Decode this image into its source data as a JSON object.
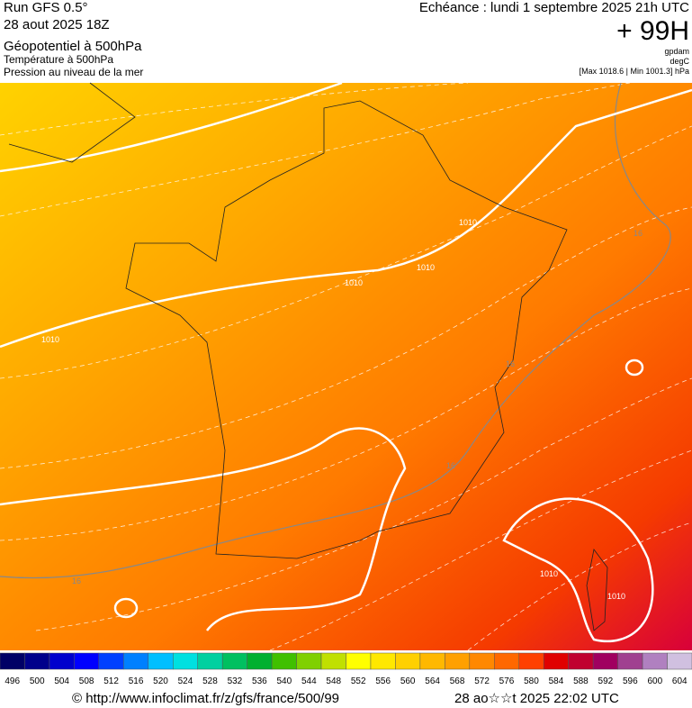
{
  "header": {
    "run": "Run GFS 0.5°",
    "date": "28 aout 2025 18Z",
    "layers": [
      "Géopotentiel à 500hPa",
      "Température à 500hPa",
      "Pression au niveau de la mer"
    ],
    "echeance": "Echéance : lundi 1 septembre 2025 21h UTC",
    "lead": "+ 99H",
    "units": [
      "gpdam",
      "degC",
      "[Max 1018.6 | Min 1001.3] hPa"
    ]
  },
  "map": {
    "contour_labels": [
      "1010",
      "1010",
      "1010",
      "1010",
      "1010",
      "1010",
      "16",
      "16",
      "16",
      "16"
    ]
  },
  "legend": {
    "values": [
      496,
      500,
      504,
      508,
      512,
      516,
      520,
      524,
      528,
      532,
      536,
      540,
      544,
      548,
      552,
      556,
      560,
      564,
      568,
      572,
      576,
      580,
      584,
      588,
      592,
      596,
      600,
      604
    ],
    "colors": [
      "#000066",
      "#00008b",
      "#0000cd",
      "#0000ff",
      "#0040ff",
      "#0080ff",
      "#00bfff",
      "#00e0e0",
      "#00d0a0",
      "#00c060",
      "#00b030",
      "#40c000",
      "#80d000",
      "#c0e000",
      "#ffff00",
      "#ffe800",
      "#ffd000",
      "#ffb800",
      "#ffa000",
      "#ff8800",
      "#ff6800",
      "#ff4000",
      "#e00000",
      "#c00030",
      "#a00060",
      "#a04090",
      "#b080c0",
      "#d0c0e0"
    ]
  },
  "footer": {
    "source": "© http://www.infoclimat.fr/z/gfs/france/500/99",
    "generated": "28 ao☆☆t 2025 22:02 UTC"
  }
}
